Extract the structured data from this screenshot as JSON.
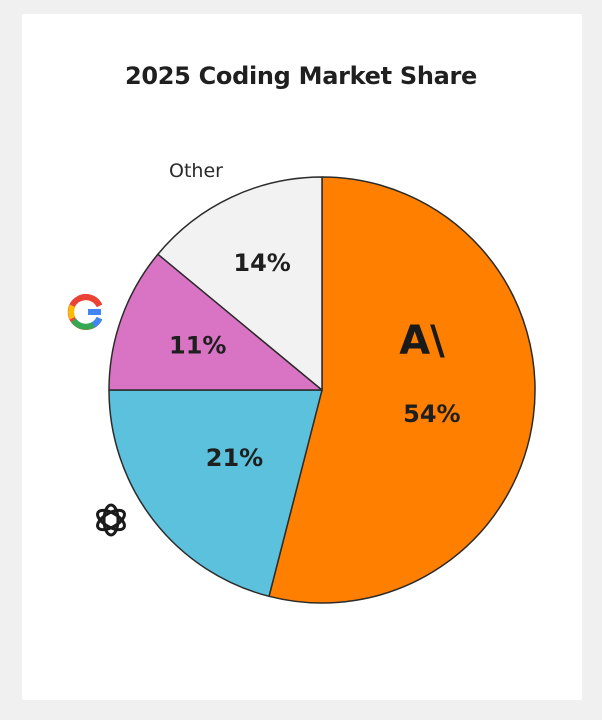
{
  "chart_data": {
    "type": "pie",
    "title": "2025 Coding Market Share",
    "slices": [
      {
        "key": "anthropic",
        "value": 54,
        "label": "54%",
        "color": "#ff7f00",
        "icon": "anthropic-logo-icon",
        "logo_text": "A\\"
      },
      {
        "key": "openai",
        "value": 21,
        "label": "21%",
        "color": "#5bc1dc",
        "icon": "openai-logo-icon"
      },
      {
        "key": "google",
        "value": 11,
        "label": "11%",
        "color": "#d974c4",
        "icon": "google-logo-icon"
      },
      {
        "key": "other",
        "value": 14,
        "label": "14%",
        "color": "#f2f2f2",
        "name": "Other"
      }
    ],
    "start_angle": "top, clockwise"
  }
}
